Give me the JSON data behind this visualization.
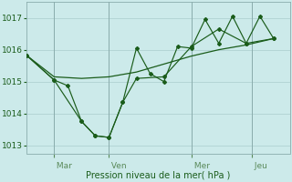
{
  "background_color": "#cceaea",
  "grid_color": "#aacccc",
  "line_color": "#1a5c1a",
  "xlabel": "Pression niveau de la mer( hPa )",
  "ylim": [
    1012.75,
    1017.5
  ],
  "yticks": [
    1013,
    1014,
    1015,
    1016,
    1017
  ],
  "day_labels": [
    " Mar",
    " Ven",
    " Mer",
    " Jeu"
  ],
  "xlim_data": [
    0,
    9.6
  ],
  "vlines_x": [
    1,
    3,
    6,
    8.2
  ],
  "trend_x": [
    0,
    1,
    2,
    3,
    4,
    5,
    6,
    7,
    8,
    9
  ],
  "trend_y": [
    1015.82,
    1015.15,
    1015.1,
    1015.15,
    1015.3,
    1015.55,
    1015.8,
    1016.0,
    1016.15,
    1016.35
  ],
  "series_dip_x": [
    0,
    1,
    2,
    2.5,
    3,
    3.5,
    4,
    5,
    6,
    7,
    8,
    9
  ],
  "series_dip_y": [
    1015.82,
    1015.05,
    1013.75,
    1013.3,
    1013.25,
    1014.35,
    1015.1,
    1015.15,
    1016.1,
    1016.65,
    1016.2,
    1016.35
  ],
  "series_mid_x": [
    0,
    1,
    1.5,
    2,
    2.5,
    3,
    3.5,
    4,
    4.5,
    5,
    5.5,
    6,
    6.5,
    7,
    7.5,
    8,
    8.5,
    9
  ],
  "series_mid_y": [
    1015.82,
    1015.05,
    1014.87,
    1013.75,
    1013.3,
    1013.25,
    1014.35,
    1016.05,
    1015.25,
    1015.0,
    1016.1,
    1016.05,
    1016.95,
    1016.2,
    1017.05,
    1016.2,
    1017.05,
    1016.35
  ]
}
